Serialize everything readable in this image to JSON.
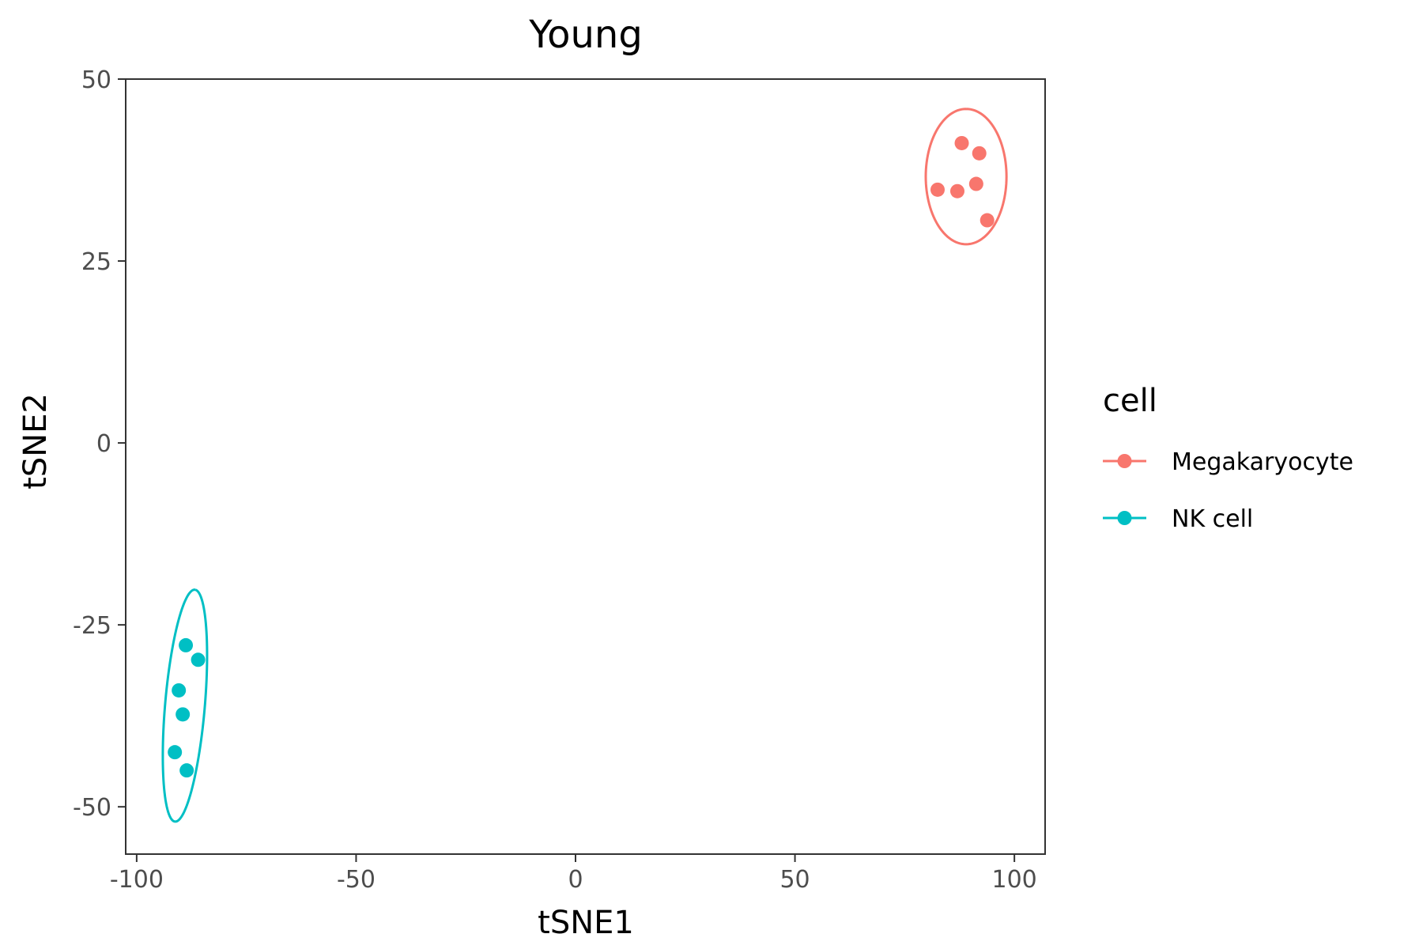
{
  "chart_data": {
    "type": "scatter",
    "title": "Young",
    "xlabel": "tSNE1",
    "ylabel": "tSNE2",
    "xlim": [
      -102.5,
      107
    ],
    "ylim": [
      -56.5,
      50
    ],
    "x_ticks": [
      -100,
      -50,
      0,
      50,
      100
    ],
    "x_tick_labels": [
      "-100",
      "-50",
      "0",
      "50",
      "100"
    ],
    "y_ticks": [
      -50,
      -25,
      0,
      25,
      50
    ],
    "y_tick_labels": [
      "-50",
      "-25",
      "0",
      "25",
      "50"
    ],
    "grid": false,
    "legend": {
      "title": "cell",
      "position": "right"
    },
    "series": [
      {
        "name": "Megakaryocyte",
        "color": "#F8766D",
        "points": [
          {
            "x": 88.0,
            "y": 41.2
          },
          {
            "x": 92.0,
            "y": 39.8
          },
          {
            "x": 82.5,
            "y": 34.8
          },
          {
            "x": 87.0,
            "y": 34.6
          },
          {
            "x": 91.3,
            "y": 35.6
          },
          {
            "x": 93.8,
            "y": 30.6
          }
        ],
        "ellipse": {
          "cx": 89.0,
          "cy": 36.6,
          "rx": 9.3,
          "ry": 9.2,
          "angle": 90
        }
      },
      {
        "name": "NK cell",
        "color": "#00BFC4",
        "points": [
          {
            "x": -88.8,
            "y": -27.8
          },
          {
            "x": -86.0,
            "y": -29.8
          },
          {
            "x": -90.4,
            "y": -34.0
          },
          {
            "x": -89.5,
            "y": -37.3
          },
          {
            "x": -91.3,
            "y": -42.5
          },
          {
            "x": -88.6,
            "y": -45.0
          }
        ],
        "ellipse": {
          "cx": -89.0,
          "cy": -36.1,
          "rx": 16.1,
          "ry": 4.5,
          "angle": 81.5
        }
      }
    ]
  }
}
